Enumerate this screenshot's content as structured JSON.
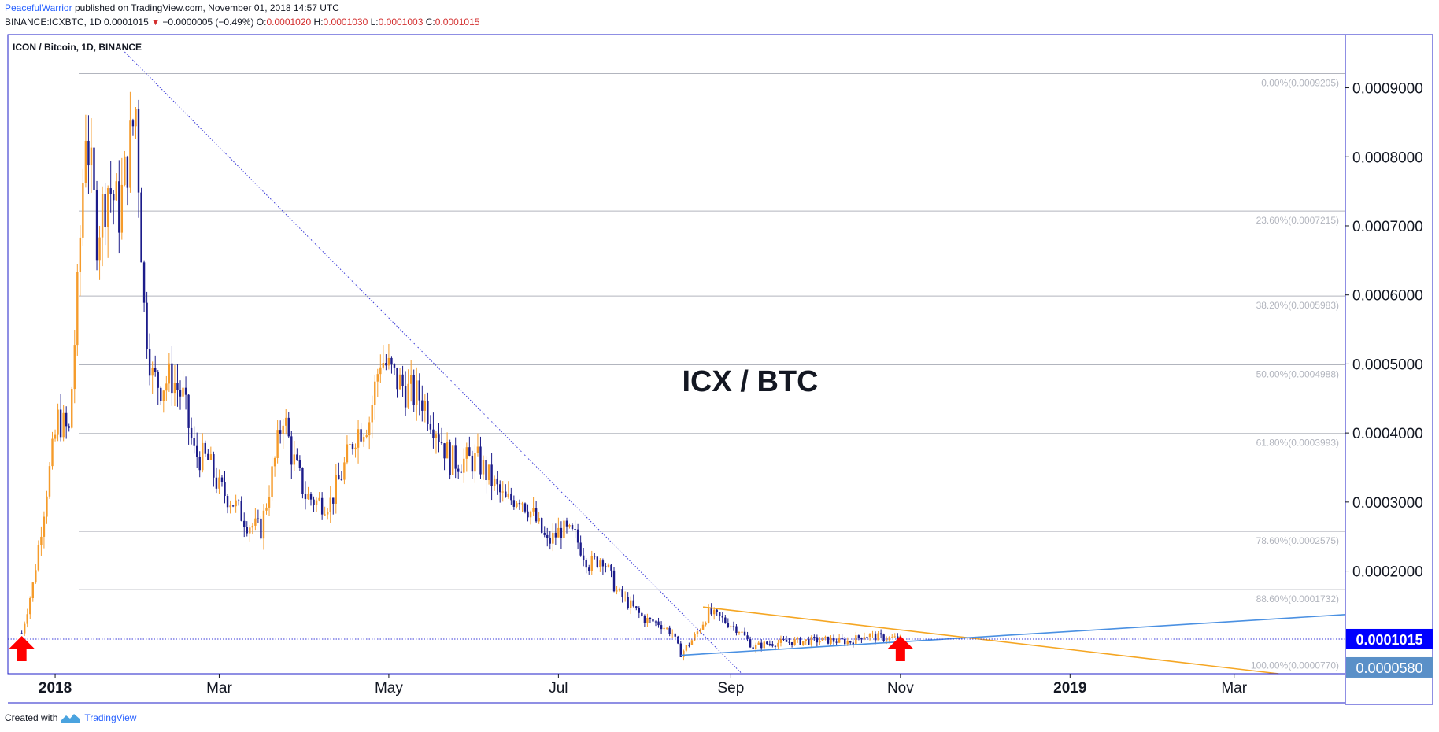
{
  "header": {
    "author": "PeacefulWarrior",
    "published": "published on TradingView.com, November 01, 2018 14:57 UTC",
    "symbol_line": "BINANCE:ICXBTC, 1D",
    "last": "0.0001015",
    "change_arrow": "▼",
    "change": "−0.0000005 (−0.49%)",
    "o_label": "O:",
    "o_value": "0.0001020",
    "h_label": "H:",
    "h_value": "0.0001030",
    "l_label": "L:",
    "l_value": "0.0001003",
    "c_label": "C:",
    "c_value": "0.0001015"
  },
  "footer": {
    "created": "Created with",
    "brand": "TradingView",
    "logo_icon": "tradingview-logo-icon"
  },
  "colors": {
    "frame": "#1f1fc9",
    "up": "#f59b2a",
    "down": "#1c1c8a",
    "fib": "#b2b5be",
    "resistance": "#f5a623",
    "support": "#4a90e2",
    "price_label_bg": "#0000ff",
    "alt_label_bg": "#5a90c8",
    "arrow": "#ff0000"
  },
  "chart_data": {
    "type": "candlestick",
    "title": "ICON / Bitcoin, 1D, BINANCE",
    "annotation": "ICX / BTC",
    "x_ticks": [
      "2018",
      "Mar",
      "May",
      "Jul",
      "Sep",
      "Nov",
      "2019",
      "Mar"
    ],
    "x_tick_dates": [
      "2018-01-01",
      "2018-03-01",
      "2018-05-01",
      "2018-07-01",
      "2018-09-01",
      "2018-11-01",
      "2019-01-01",
      "2019-03-01"
    ],
    "x_range": [
      "2017-12-15",
      "2019-04-10"
    ],
    "y_ticks": [
      "0.0009000",
      "0.0008000",
      "0.0007000",
      "0.0006000",
      "0.0005000",
      "0.0004000",
      "0.0003000",
      "0.0002000"
    ],
    "y_range": [
      5.13e-05,
      0.000977
    ],
    "current_price": "0.0001015",
    "secondary_price": "0.0000580",
    "fib_levels": [
      {
        "label": "0.00%(0.0009205)",
        "value": 0.0009205
      },
      {
        "label": "23.60%(0.0007215)",
        "value": 0.0007215
      },
      {
        "label": "38.20%(0.0005983)",
        "value": 0.0005983
      },
      {
        "label": "50.00%(0.0004988)",
        "value": 0.0004988
      },
      {
        "label": "61.80%(0.0003993)",
        "value": 0.0003993
      },
      {
        "label": "78.60%(0.0002575)",
        "value": 0.0002575
      },
      {
        "label": "88.60%(0.0001732)",
        "value": 0.0001732
      },
      {
        "label": "100.00%(0.0000770)",
        "value": 7.7e-05
      }
    ],
    "close_path": [
      [
        "2017-12-20",
        0.00011
      ],
      [
        "2017-12-24",
        0.00018
      ],
      [
        "2017-12-29",
        0.00032
      ],
      [
        "2018-01-02",
        0.00042
      ],
      [
        "2018-01-06",
        0.0004
      ],
      [
        "2018-01-09",
        0.0006
      ],
      [
        "2018-01-12",
        0.00085
      ],
      [
        "2018-01-16",
        0.00069
      ],
      [
        "2018-01-20",
        0.00076
      ],
      [
        "2018-01-24",
        0.00072
      ],
      [
        "2018-01-28",
        0.00082
      ],
      [
        "2018-01-30",
        0.00087
      ],
      [
        "2018-02-02",
        0.00058
      ],
      [
        "2018-02-05",
        0.00048
      ],
      [
        "2018-02-08",
        0.00047
      ],
      [
        "2018-02-12",
        0.00048
      ],
      [
        "2018-02-16",
        0.00045
      ],
      [
        "2018-02-20",
        0.00037
      ],
      [
        "2018-02-25",
        0.00036
      ],
      [
        "2018-03-01",
        0.00032
      ],
      [
        "2018-03-06",
        0.0003
      ],
      [
        "2018-03-11",
        0.00027
      ],
      [
        "2018-03-16",
        0.00026
      ],
      [
        "2018-03-21",
        0.00036
      ],
      [
        "2018-03-24",
        0.00043
      ],
      [
        "2018-03-27",
        0.00037
      ],
      [
        "2018-04-01",
        0.00031
      ],
      [
        "2018-04-05",
        0.0003
      ],
      [
        "2018-04-10",
        0.0003
      ],
      [
        "2018-04-14",
        0.00034
      ],
      [
        "2018-04-19",
        0.0004
      ],
      [
        "2018-04-24",
        0.00042
      ],
      [
        "2018-04-28",
        0.00051
      ],
      [
        "2018-05-03",
        0.00048
      ],
      [
        "2018-05-08",
        0.00046
      ],
      [
        "2018-05-13",
        0.00045
      ],
      [
        "2018-05-18",
        0.00041
      ],
      [
        "2018-05-23",
        0.00036
      ],
      [
        "2018-05-28",
        0.00036
      ],
      [
        "2018-06-02",
        0.00036
      ],
      [
        "2018-06-07",
        0.00033
      ],
      [
        "2018-06-12",
        0.0003
      ],
      [
        "2018-06-17",
        0.00031
      ],
      [
        "2018-06-22",
        0.00028
      ],
      [
        "2018-06-27",
        0.00024
      ],
      [
        "2018-07-02",
        0.00026
      ],
      [
        "2018-07-07",
        0.00025
      ],
      [
        "2018-07-12",
        0.00021
      ],
      [
        "2018-07-17",
        0.00022
      ],
      [
        "2018-07-22",
        0.00017
      ],
      [
        "2018-07-27",
        0.00015
      ],
      [
        "2018-08-01",
        0.00013
      ],
      [
        "2018-08-06",
        0.000125
      ],
      [
        "2018-08-11",
        0.00011
      ],
      [
        "2018-08-14",
        8e-05
      ],
      [
        "2018-08-19",
        0.000105
      ],
      [
        "2018-08-24",
        0.00014
      ],
      [
        "2018-08-29",
        0.00013
      ],
      [
        "2018-09-04",
        0.000115
      ],
      [
        "2018-09-09",
        9e-05
      ],
      [
        "2018-09-14",
        9.5e-05
      ],
      [
        "2018-09-24",
        9.8e-05
      ],
      [
        "2018-10-04",
        0.0001
      ],
      [
        "2018-10-14",
        9.8e-05
      ],
      [
        "2018-10-19",
        0.000108
      ],
      [
        "2018-10-24",
        0.000104
      ],
      [
        "2018-11-01",
        0.0001015
      ]
    ],
    "drawings": [
      {
        "name": "descending-trendline",
        "style": "dotted",
        "color": "#3a3ad8",
        "from": [
          "2018-01-26",
          0.000952
        ],
        "to": [
          "2018-09-05",
          5.13e-05
        ]
      },
      {
        "name": "resistance-trendline",
        "style": "solid",
        "color": "#f5a623",
        "from": [
          "2018-08-22",
          0.000148
        ],
        "to": [
          "2019-03-17",
          5.13e-05
        ]
      },
      {
        "name": "support-trendline",
        "style": "solid",
        "color": "#4a90e2",
        "from": [
          "2018-08-14",
          7.8e-05
        ],
        "to": [
          "2019-04-10",
          0.000137
        ]
      },
      {
        "name": "price-level-line",
        "style": "dotted",
        "color": "#3a3ad8",
        "value": 0.0001015
      }
    ],
    "markers": [
      {
        "name": "buy-arrow-dec-2017",
        "date": "2017-12-20"
      },
      {
        "name": "buy-arrow-nov-2018",
        "date": "2018-11-01"
      }
    ]
  }
}
